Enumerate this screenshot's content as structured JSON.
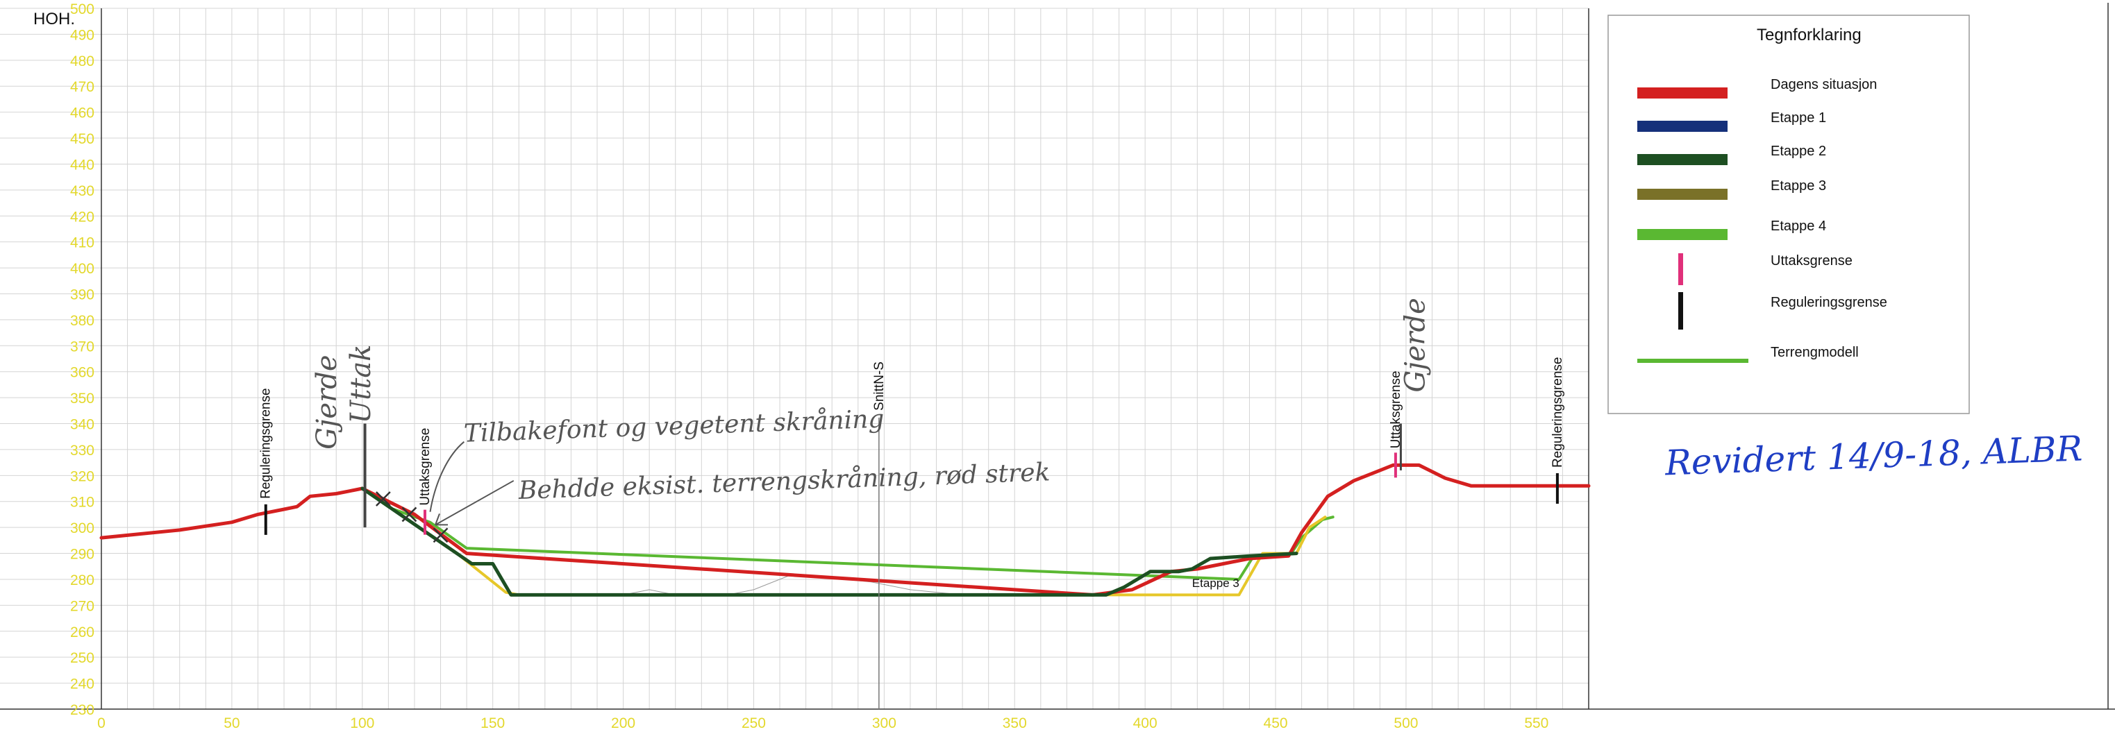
{
  "chart_data": {
    "type": "line",
    "title": "",
    "ylabel": "HOH.",
    "xlabel": "",
    "xlim": [
      0,
      570
    ],
    "ylim": [
      230,
      500
    ],
    "x_ticks": [
      0,
      50,
      100,
      150,
      200,
      250,
      300,
      350,
      400,
      450,
      500,
      550
    ],
    "y_ticks": [
      230,
      240,
      250,
      260,
      270,
      280,
      290,
      300,
      310,
      320,
      330,
      340,
      350,
      360,
      370,
      380,
      390,
      400,
      410,
      420,
      430,
      440,
      450,
      460,
      470,
      480,
      490,
      500
    ],
    "grid": true,
    "series": [
      {
        "name": "Dagens situasjon",
        "color": "#d42020",
        "width": 5,
        "points": [
          [
            0,
            296
          ],
          [
            10,
            297
          ],
          [
            30,
            299
          ],
          [
            50,
            302
          ],
          [
            60,
            305
          ],
          [
            70,
            307
          ],
          [
            75,
            308
          ],
          [
            80,
            312
          ],
          [
            90,
            313
          ],
          [
            95,
            314
          ],
          [
            100,
            315
          ],
          [
            120,
            305
          ],
          [
            140,
            290
          ],
          [
            380,
            274
          ],
          [
            395,
            276
          ],
          [
            410,
            283
          ],
          [
            420,
            284
          ],
          [
            430,
            286
          ],
          [
            440,
            288
          ],
          [
            455,
            289
          ],
          [
            460,
            298
          ],
          [
            465,
            305
          ],
          [
            470,
            312
          ],
          [
            480,
            318
          ],
          [
            490,
            322
          ],
          [
            495,
            324
          ],
          [
            505,
            324
          ],
          [
            515,
            319
          ],
          [
            525,
            316
          ],
          [
            540,
            316
          ],
          [
            555,
            316
          ],
          [
            570,
            316
          ]
        ]
      },
      {
        "name": "Etappe 2",
        "color": "#1d4f22",
        "width": 5,
        "points": [
          [
            100,
            315
          ],
          [
            142,
            286
          ],
          [
            150,
            286
          ],
          [
            157,
            274
          ],
          [
            385,
            274
          ],
          [
            392,
            277
          ],
          [
            402,
            283
          ],
          [
            413,
            283
          ],
          [
            418,
            284
          ],
          [
            425,
            288
          ],
          [
            440,
            289
          ],
          [
            458,
            290
          ]
        ]
      },
      {
        "name": "Etappe 3",
        "color": "#e6c72a",
        "width": 4,
        "points": [
          [
            135,
            291
          ],
          [
            155,
            275
          ],
          [
            160,
            274
          ],
          [
            380,
            274
          ],
          [
            390,
            274
          ],
          [
            436,
            274
          ],
          [
            445,
            290
          ],
          [
            458,
            290
          ],
          [
            463,
            300
          ],
          [
            469,
            304
          ]
        ]
      },
      {
        "name": "Etappe 4",
        "color": "#5ab832",
        "width": 4,
        "points": [
          [
            112,
            307
          ],
          [
            126,
            302
          ],
          [
            140,
            292
          ],
          [
            436,
            280
          ],
          [
            441,
            288
          ],
          [
            456,
            290
          ],
          [
            460,
            296
          ],
          [
            468,
            303
          ],
          [
            472,
            304
          ]
        ]
      },
      {
        "name": "Terrengmodell",
        "color": "#9a9a9a",
        "width": 1,
        "points": [
          [
            200,
            274
          ],
          [
            210,
            276
          ],
          [
            220,
            274
          ],
          [
            240,
            274
          ],
          [
            250,
            276
          ],
          [
            255,
            278
          ],
          [
            265,
            282
          ],
          [
            275,
            281
          ],
          [
            295,
            279
          ],
          [
            310,
            276
          ],
          [
            330,
            274
          ]
        ]
      }
    ],
    "markers": [
      {
        "kind": "Reguleringsgrense",
        "x": 63,
        "y": 303,
        "label": "Reguleringsgrense"
      },
      {
        "kind": "Reguleringsgrense",
        "x": 558,
        "y": 315,
        "label": "Reguleringsgrense"
      },
      {
        "kind": "Uttaksgrense",
        "x": 124,
        "y": 302,
        "label": "Uttaksgrense"
      },
      {
        "kind": "Uttaksgrense",
        "x": 496,
        "y": 324,
        "label": "Uttaksgrense"
      },
      {
        "kind": "section",
        "x": 298,
        "y": 345,
        "label": "SnittN-S"
      }
    ],
    "annotations": [
      {
        "text": "Etappe 3",
        "x": 418,
        "y": 277
      },
      {
        "text": "Gjerde",
        "x": 90,
        "y": 330,
        "handwritten": true
      },
      {
        "text": "Uttak",
        "x": 103,
        "y": 340,
        "handwritten": true
      },
      {
        "text": "Tilbakefont og vegetent skråning",
        "x": 139,
        "y": 333,
        "handwritten": true
      },
      {
        "text": "Behdde eksist. terrengskråning, rød strek",
        "x": 160,
        "y": 311,
        "handwritten": true
      },
      {
        "text": "Gjerde",
        "x": 507,
        "y": 352,
        "handwritten": true
      }
    ]
  },
  "legend": {
    "title": "Tegnforklaring",
    "items": [
      {
        "label": "Dagens situasjon",
        "color": "#d42020",
        "symbol": "thick-line"
      },
      {
        "label": "Etappe 1",
        "color": "#15307a",
        "symbol": "thick-line"
      },
      {
        "label": "Etappe 2",
        "color": "#1d4f22",
        "symbol": "thick-line"
      },
      {
        "label": "Etappe 3",
        "color": "#7a7128",
        "symbol": "thick-line"
      },
      {
        "label": "Etappe 4",
        "color": "#5ab832",
        "symbol": "thick-line"
      },
      {
        "label": "Uttaksgrense",
        "color": "#e0307a",
        "symbol": "vertical-bar"
      },
      {
        "label": "Reguleringsgrense",
        "color": "#111111",
        "symbol": "vertical-bar"
      },
      {
        "label": "Terrengmodell",
        "color": "#5ab832",
        "symbol": "thin-line"
      }
    ]
  },
  "revision_note": "Revidert 14/9-18, ALBR",
  "colors": {
    "axis_labels": "#e3d82c",
    "grid": "#d4d4d4",
    "handwriting_pencil": "#555555",
    "handwriting_ink": "#1f3ec4"
  }
}
